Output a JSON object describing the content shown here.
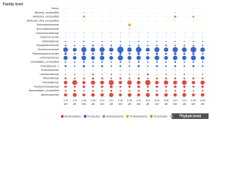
{
  "chart_data": {
    "type": "bubble",
    "row_header": "Family level",
    "column_header": "Phylum level",
    "categories": [
      "1-H",
      "1-H",
      "1-W",
      "1-W",
      "2-H",
      "2-H",
      "2-W",
      "2-W",
      "3-H",
      "3-H",
      "3-W",
      "3-W",
      "4-H",
      "4-H",
      "4-W",
      "4-W"
    ],
    "subcategories": [
      "bef",
      "aft",
      "bef",
      "aft",
      "bef",
      "aft",
      "bef",
      "aft",
      "bef",
      "aft",
      "bef",
      "aft",
      "bef",
      "aft",
      "bef",
      "aft"
    ],
    "phyla": [
      {
        "name": "Bacteroidetes",
        "color": "#d9362b"
      },
      {
        "name": "Firmicutes",
        "color": "#1f55c4"
      },
      {
        "name": "Actinobacteria",
        "color": "#8c8c8c"
      },
      {
        "name": "Proteobacteria",
        "color": "#f0a020"
      },
      {
        "name": "Tenericutes",
        "color": "#6ab72e"
      },
      {
        "name": "Others",
        "color": "#b5b5b5"
      }
    ],
    "rows": [
      {
        "name": "Others",
        "phylum": 5,
        "values": [
          0.5,
          0.3,
          0.2,
          0.3,
          0.3,
          0.2,
          0.3,
          0.2,
          0.3,
          0.2,
          0.2,
          0.3,
          0.2,
          0.2,
          0.3,
          0.2
        ]
      },
      {
        "name": "Bacteria_unclassified",
        "phylum": 5,
        "values": [
          0.3,
          0.2,
          1.5,
          0.3,
          0.2,
          0.3,
          0.2,
          0.2,
          0.3,
          0.2,
          0.3,
          0.2,
          1.2,
          0.2,
          0.3,
          0.2
        ]
      },
      {
        "name": "Mollicutes_unclassified",
        "phylum": 4,
        "values": [
          0.2,
          0.2,
          3,
          0.2,
          0.2,
          0.2,
          0.2,
          0.2,
          0.2,
          0.2,
          0.2,
          0.2,
          4,
          0.2,
          3,
          0.2
        ]
      },
      {
        "name": "Mollicutes_RF9_unclassified",
        "phylum": 4,
        "values": [
          0.2,
          0.1,
          0.5,
          0.1,
          0.2,
          0.1,
          0.2,
          0.1,
          0.1,
          0.1,
          0.2,
          0.1,
          0.5,
          0.1,
          0.3,
          0.1
        ]
      },
      {
        "name": "Enterobacteriaceae",
        "phylum": 3,
        "values": [
          0.2,
          0.2,
          0.2,
          0.2,
          0.2,
          0.2,
          0.2,
          6,
          0.3,
          0.2,
          0.2,
          0.2,
          0.2,
          0.2,
          0.2,
          0.2
        ]
      },
      {
        "name": "Succinivibrionaceae",
        "phylum": 3,
        "values": [
          0.1,
          0.1,
          0.1,
          0.1,
          0.1,
          0.1,
          0.1,
          1,
          0.1,
          0.1,
          0.1,
          0.1,
          0.1,
          0.1,
          0.1,
          0.1
        ]
      },
      {
        "name": "Christensenellaceae",
        "phylum": 1,
        "values": [
          0.3,
          0.3,
          0.4,
          0.3,
          0.3,
          0.3,
          0.4,
          0.3,
          0.3,
          0.3,
          0.4,
          0.3,
          0.3,
          0.3,
          0.4,
          0.3
        ]
      },
      {
        "name": "Peptococcaceae",
        "phylum": 1,
        "values": [
          0.2,
          0.2,
          0.3,
          0.2,
          0.2,
          0.2,
          0.3,
          0.2,
          0.2,
          0.2,
          0.3,
          0.2,
          0.2,
          0.2,
          0.3,
          0.2
        ]
      },
      {
        "name": "Veillonellaceae",
        "phylum": 1,
        "values": [
          1,
          0.8,
          1.5,
          0.7,
          1.2,
          0.8,
          1,
          0.6,
          1.3,
          0.9,
          1.1,
          0.8,
          1,
          0.7,
          1.4,
          0.8
        ]
      },
      {
        "name": "Erysipelotrichaceae",
        "phylum": 1,
        "values": [
          2,
          1.5,
          1.8,
          2.5,
          1.6,
          2,
          1.4,
          1.8,
          2.2,
          1.5,
          1.7,
          2,
          1.5,
          1.8,
          2.3,
          1.6
        ]
      },
      {
        "name": "Ruminococcaceae",
        "phylum": 1,
        "values": [
          18,
          12,
          22,
          15,
          20,
          14,
          30,
          16,
          24,
          12,
          20,
          15,
          22,
          18,
          25,
          16
        ]
      },
      {
        "name": "Peptostreptococcaceae",
        "phylum": 1,
        "values": [
          4,
          2,
          5,
          3,
          6,
          2,
          4,
          3,
          5,
          2,
          4,
          3,
          5,
          3,
          4,
          2
        ]
      },
      {
        "name": "Lachnospiraceae",
        "phylum": 1,
        "values": [
          14,
          10,
          18,
          12,
          16,
          11,
          20,
          13,
          15,
          10,
          17,
          12,
          16,
          14,
          19,
          12
        ]
      },
      {
        "name": "Clostridiales_unclassified",
        "phylum": 1,
        "values": [
          2,
          1.5,
          2.5,
          1.8,
          2,
          1.4,
          2.2,
          1.6,
          2.4,
          1.5,
          2,
          1.7,
          2.3,
          1.5,
          2.1,
          1.6
        ]
      },
      {
        "name": "Clostridiaceae_1",
        "phylum": 1,
        "values": [
          3,
          1.5,
          4,
          2,
          3,
          1.8,
          2.5,
          2,
          3.5,
          1.6,
          3,
          2,
          2.8,
          1.8,
          3.2,
          2
        ]
      },
      {
        "name": "Eubacteriaceae",
        "phylum": 1,
        "values": [
          0.4,
          0.3,
          0.5,
          0.3,
          0.4,
          0.3,
          0.5,
          0.3,
          0.4,
          0.3,
          0.5,
          0.3,
          0.4,
          0.3,
          0.5,
          0.3
        ]
      },
      {
        "name": "Lactobacillaceae",
        "phylum": 1,
        "values": [
          0.8,
          1.2,
          0.5,
          2,
          0.7,
          1.5,
          0.6,
          1,
          0.9,
          2.5,
          0.6,
          1.2,
          0.8,
          1.4,
          0.5,
          1
        ]
      },
      {
        "name": "Rikenellaceae",
        "phylum": 0,
        "values": [
          3,
          2,
          2.5,
          3.5,
          2.8,
          2,
          3,
          2.2,
          3.2,
          2,
          2.6,
          3,
          2.8,
          2.2,
          3,
          2.4
        ]
      },
      {
        "name": "Prevotellaceae",
        "phylum": 0,
        "values": [
          10,
          18,
          8,
          14,
          12,
          20,
          9,
          16,
          11,
          22,
          10,
          15,
          12,
          17,
          9,
          14
        ]
      },
      {
        "name": "Porphyromonadaceae",
        "phylum": 0,
        "values": [
          4,
          3,
          5,
          3,
          4,
          6,
          3,
          4,
          5,
          3,
          4,
          3,
          5,
          4,
          3,
          4
        ]
      },
      {
        "name": "Bacteroidales_unclassified",
        "phylum": 0,
        "values": [
          2,
          3,
          1.5,
          2.5,
          2,
          3,
          1.8,
          2.2,
          2.5,
          3,
          1.6,
          2.4,
          2,
          2.8,
          1.7,
          2.3
        ]
      },
      {
        "name": "Bacteroidaceae",
        "phylum": 0,
        "values": [
          8,
          12,
          6,
          10,
          9,
          14,
          7,
          11,
          8,
          13,
          6,
          10,
          9,
          12,
          7,
          10
        ]
      }
    ]
  }
}
